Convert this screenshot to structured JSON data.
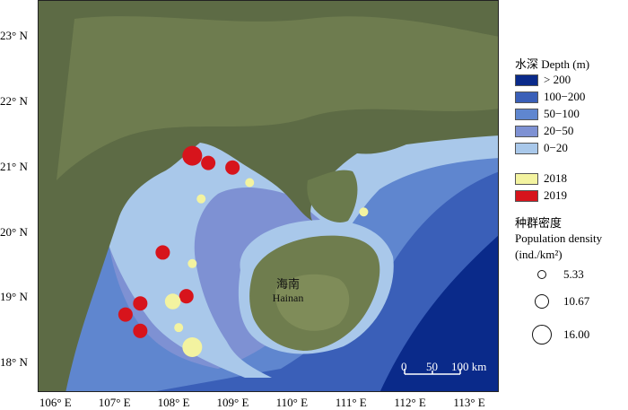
{
  "map": {
    "lat_labels": [
      "23° N",
      "22° N",
      "21° N",
      "20° N",
      "19° N",
      "18° N"
    ],
    "lon_labels": [
      "106° E",
      "107° E",
      "108° E",
      "109° E",
      "110° E",
      "111° E",
      "112° E",
      "113° E"
    ],
    "place_cn": "海南",
    "place_en": "Hainan",
    "scale": {
      "tick0": "0",
      "tick1": "50",
      "tick2": "100 km"
    },
    "samples": [
      {
        "year": "2019",
        "lon": 108.3,
        "lat": 21.18,
        "density": 16.0
      },
      {
        "year": "2019",
        "lon": 108.57,
        "lat": 21.07,
        "density": 10.7
      },
      {
        "year": "2019",
        "lon": 108.98,
        "lat": 21.0,
        "density": 10.7
      },
      {
        "year": "2018",
        "lon": 109.27,
        "lat": 20.77,
        "density": 5.33
      },
      {
        "year": "2018",
        "lon": 108.45,
        "lat": 20.52,
        "density": 5.33
      },
      {
        "year": "2018",
        "lon": 111.2,
        "lat": 20.32,
        "density": 5.33
      },
      {
        "year": "2019",
        "lon": 107.8,
        "lat": 19.7,
        "density": 10.7
      },
      {
        "year": "2018",
        "lon": 108.3,
        "lat": 19.53,
        "density": 5.33
      },
      {
        "year": "2019",
        "lon": 108.2,
        "lat": 19.03,
        "density": 10.7
      },
      {
        "year": "2018",
        "lon": 107.97,
        "lat": 18.95,
        "density": 12.0
      },
      {
        "year": "2019",
        "lon": 107.42,
        "lat": 18.92,
        "density": 10.7
      },
      {
        "year": "2019",
        "lon": 107.17,
        "lat": 18.75,
        "density": 10.7
      },
      {
        "year": "2019",
        "lon": 107.42,
        "lat": 18.5,
        "density": 10.7
      },
      {
        "year": "2018",
        "lon": 108.07,
        "lat": 18.55,
        "density": 5.33
      },
      {
        "year": "2018",
        "lon": 108.3,
        "lat": 18.25,
        "density": 16.0
      }
    ]
  },
  "legend": {
    "depth_title": "水深 Depth (m)",
    "depth_classes": [
      {
        "label": "> 200",
        "color": "#0a2a8a"
      },
      {
        "label": "100−200",
        "color": "#3a5fb8"
      },
      {
        "label": "50−100",
        "color": "#5f86cf"
      },
      {
        "label": "20−50",
        "color": "#7e91d3"
      },
      {
        "label": "0−20",
        "color": "#a9c8ea"
      }
    ],
    "years": [
      {
        "label": "2018",
        "color": "#f3f3a0"
      },
      {
        "label": "2019",
        "color": "#d7141c"
      }
    ],
    "density_title_cn": "种群密度",
    "density_title_en": "Population density",
    "density_unit": "(ind./km²)",
    "density_sizes": [
      "5.33",
      "10.67",
      "16.00"
    ]
  }
}
